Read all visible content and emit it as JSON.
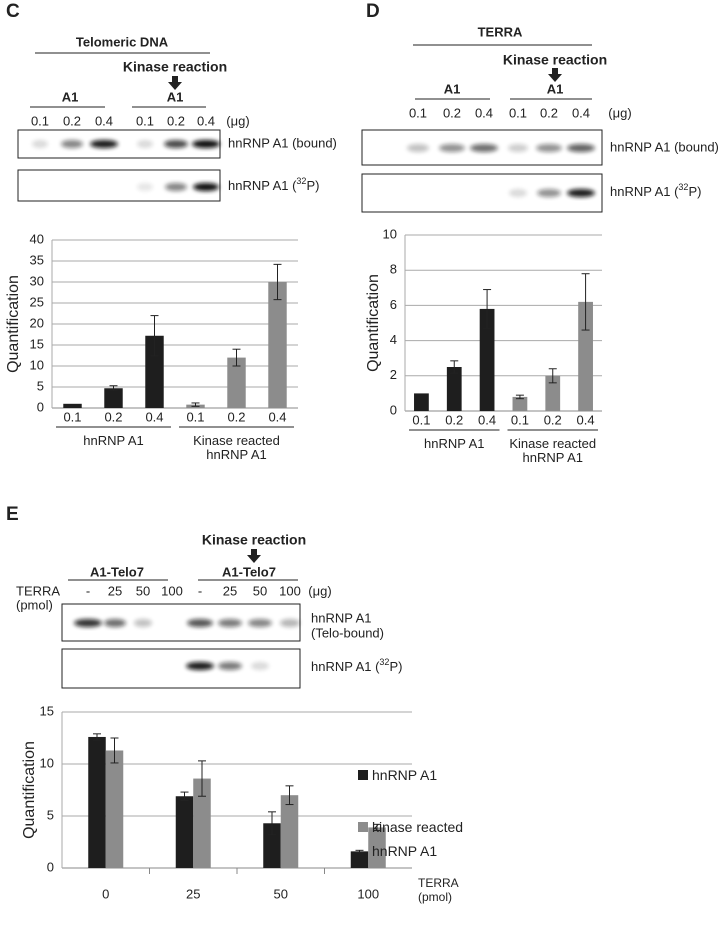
{
  "panel_labels": [
    "C",
    "D",
    "E"
  ],
  "blots": [
    {
      "header": "Telomeric DNA",
      "reaction": "Kinase reaction",
      "groups": [
        "A1",
        "A1"
      ],
      "lanes": [
        "0.1",
        "0.2",
        "0.4",
        "0.1",
        "0.2",
        "0.4"
      ],
      "unit": "(μg)",
      "rows": [
        {
          "lines": [
            "hnRNP A1 (bound)"
          ]
        },
        {
          "pre": "hnRNP A1 (",
          "sup": "32",
          "post": "P)"
        }
      ]
    },
    {
      "header": "TERRA",
      "reaction": "Kinase reaction",
      "groups": [
        "A1",
        "A1"
      ],
      "lanes": [
        "0.1",
        "0.2",
        "0.4",
        "0.1",
        "0.2",
        "0.4"
      ],
      "unit": "(μg)",
      "rows": [
        {
          "lines": [
            "hnRNP A1 (bound)"
          ]
        },
        {
          "pre": "hnRNP A1 (",
          "sup": "32",
          "post": "P)"
        }
      ]
    },
    {
      "reaction": "Kinase reaction",
      "groups": [
        "A1-Telo7",
        "A1-Telo7"
      ],
      "sample_label": [
        "TERRA",
        "(pmol)"
      ],
      "lanes": [
        "-",
        "25",
        "50",
        "100",
        "-",
        "25",
        "50",
        "100"
      ],
      "unit": "(μg)",
      "rows": [
        {
          "lines": [
            "hnRNP A1",
            "(Telo-bound)"
          ]
        },
        {
          "pre": "hnRNP A1 (",
          "sup": "32",
          "post": "P)"
        }
      ]
    }
  ],
  "chart_data": [
    {
      "type": "bar",
      "grouping": "sequential",
      "ylabel": "Quantification",
      "ylim": [
        0,
        40
      ],
      "yticks": [
        0,
        5,
        10,
        15,
        20,
        25,
        30,
        35,
        40
      ],
      "grid": true,
      "categories": [
        "0.1",
        "0.2",
        "0.4"
      ],
      "series": [
        {
          "name": "hnRNP A1",
          "color": "#1e1e1e",
          "values": [
            1.0,
            4.7,
            17.2
          ],
          "errors": [
            null,
            0.6,
            4.8
          ]
        },
        {
          "name": "Kinase reacted hnRNP A1",
          "color": "#8c8c8c",
          "values": [
            0.8,
            12,
            30
          ],
          "errors": [
            0.4,
            2,
            4.2
          ]
        }
      ]
    },
    {
      "type": "bar",
      "grouping": "sequential",
      "ylabel": "Quantification",
      "ylim": [
        0,
        10
      ],
      "yticks": [
        0,
        2,
        4,
        6,
        8,
        10
      ],
      "grid": true,
      "categories": [
        "0.1",
        "0.2",
        "0.4"
      ],
      "series": [
        {
          "name": "hnRNP A1",
          "color": "#1e1e1e",
          "values": [
            1.0,
            2.5,
            5.8
          ],
          "errors": [
            null,
            0.35,
            1.1
          ]
        },
        {
          "name": "Kinase reacted hnRNP A1",
          "color": "#8c8c8c",
          "values": [
            0.8,
            2.0,
            6.2
          ],
          "errors": [
            0.1,
            0.4,
            1.6
          ]
        }
      ]
    },
    {
      "type": "bar",
      "grouping": "grouped",
      "legend": "right",
      "ylabel": "Quantification",
      "xlabel": "TERRA (pmol)",
      "ylim": [
        0,
        15
      ],
      "yticks": [
        0,
        5,
        10,
        15
      ],
      "grid": true,
      "categories": [
        "0",
        "25",
        "50",
        "100"
      ],
      "series": [
        {
          "name": "hnRNP A1",
          "color": "#1e1e1e",
          "values": [
            12.6,
            6.9,
            4.3,
            1.6
          ],
          "errors": [
            0.3,
            0.4,
            1.1,
            0.1
          ]
        },
        {
          "name": "kinase reacted hnRNP A1",
          "color": "#8c8c8c",
          "values": [
            11.3,
            8.6,
            7.0,
            3.9
          ],
          "errors": [
            1.2,
            1.7,
            0.9,
            0.3
          ]
        }
      ]
    }
  ]
}
